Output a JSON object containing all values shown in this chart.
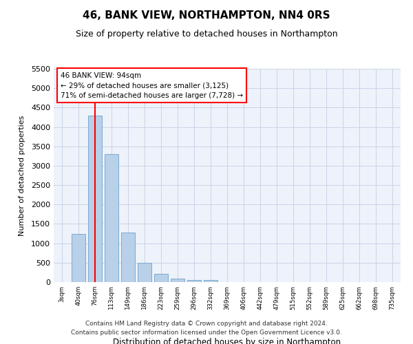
{
  "title": "46, BANK VIEW, NORTHAMPTON, NN4 0RS",
  "subtitle": "Size of property relative to detached houses in Northampton",
  "xlabel": "Distribution of detached houses by size in Northampton",
  "ylabel": "Number of detached properties",
  "footer_line1": "Contains HM Land Registry data © Crown copyright and database right 2024.",
  "footer_line2": "Contains public sector information licensed under the Open Government Licence v3.0.",
  "bar_labels": [
    "3sqm",
    "40sqm",
    "76sqm",
    "113sqm",
    "149sqm",
    "186sqm",
    "223sqm",
    "259sqm",
    "296sqm",
    "332sqm",
    "369sqm",
    "406sqm",
    "442sqm",
    "479sqm",
    "515sqm",
    "552sqm",
    "589sqm",
    "625sqm",
    "662sqm",
    "698sqm",
    "735sqm"
  ],
  "bar_values": [
    0,
    1250,
    4300,
    3300,
    1280,
    490,
    220,
    90,
    55,
    55,
    0,
    0,
    0,
    0,
    0,
    0,
    0,
    0,
    0,
    0,
    0
  ],
  "bar_color": "#b8d0e8",
  "bar_edge_color": "#7aaad0",
  "ylim": [
    0,
    5500
  ],
  "yticks": [
    0,
    500,
    1000,
    1500,
    2000,
    2500,
    3000,
    3500,
    4000,
    4500,
    5000,
    5500
  ],
  "property_label": "46 BANK VIEW: 94sqm",
  "annotation_line1": "← 29% of detached houses are smaller (3,125)",
  "annotation_line2": "71% of semi-detached houses are larger (7,728) →",
  "vline_bar_index": 2,
  "background_color": "#eef2fa",
  "grid_color": "#c8d4e8"
}
